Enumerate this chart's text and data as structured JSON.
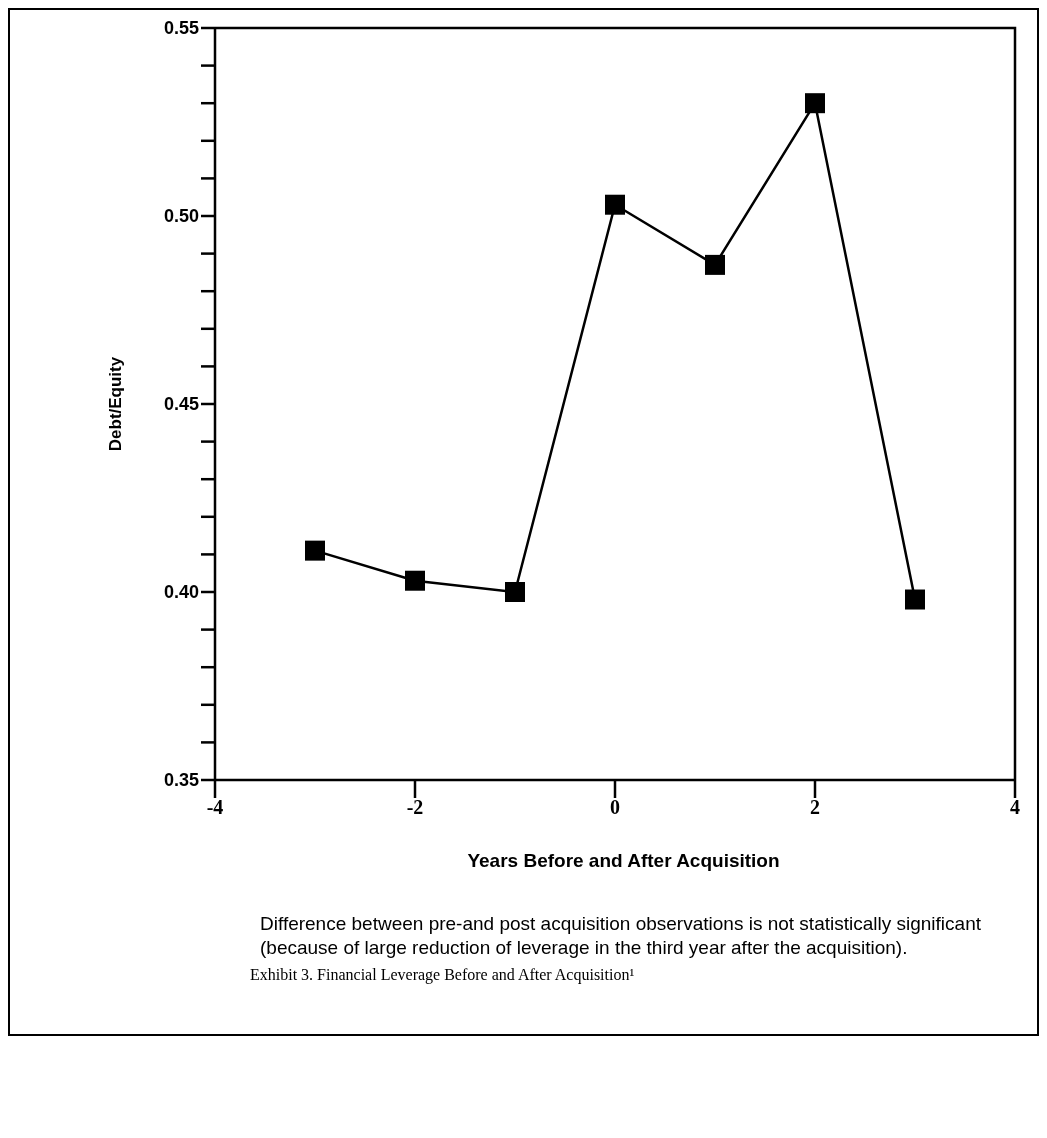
{
  "chart_data": {
    "type": "line",
    "title": "Exhibit 3. Financial Leverage Before and After Acquisition¹",
    "xlabel": "Years Before and After Acquisition",
    "ylabel": "Debt/Equity",
    "annotations": [
      "Difference between pre-and post acquisition observations is not statistically significant (because of large reduction of leverage in the third year after the acquisition)."
    ],
    "x": [
      -3,
      -2,
      -1,
      0,
      1,
      2,
      3
    ],
    "values": [
      0.411,
      0.403,
      0.4,
      0.503,
      0.487,
      0.53,
      0.398
    ],
    "color": "#000000",
    "marker": "square",
    "line_style": "solid",
    "xlim": [
      -4,
      4
    ],
    "xticks": [
      -4,
      -2,
      0,
      2,
      4
    ],
    "ylim": [
      0.35,
      0.55
    ],
    "yticks": [
      {
        "value": 0.35,
        "label": "0.35"
      },
      {
        "value": 0.36,
        "label": null
      },
      {
        "value": 0.37,
        "label": null
      },
      {
        "value": 0.38,
        "label": null
      },
      {
        "value": 0.39,
        "label": null
      },
      {
        "value": 0.4,
        "label": "0.40"
      },
      {
        "value": 0.41,
        "label": null
      },
      {
        "value": 0.42,
        "label": null
      },
      {
        "value": 0.43,
        "label": null
      },
      {
        "value": 0.44,
        "label": null
      },
      {
        "value": 0.45,
        "label": "0.45"
      },
      {
        "value": 0.46,
        "label": null
      },
      {
        "value": 0.47,
        "label": null
      },
      {
        "value": 0.48,
        "label": null
      },
      {
        "value": 0.49,
        "label": null
      },
      {
        "value": 0.5,
        "label": "0.50"
      },
      {
        "value": 0.51,
        "label": null
      },
      {
        "value": 0.52,
        "label": null
      },
      {
        "value": 0.53,
        "label": null
      },
      {
        "value": 0.54,
        "label": null
      },
      {
        "value": 0.55,
        "label": "0.55"
      }
    ],
    "grid": false,
    "legend": false
  }
}
